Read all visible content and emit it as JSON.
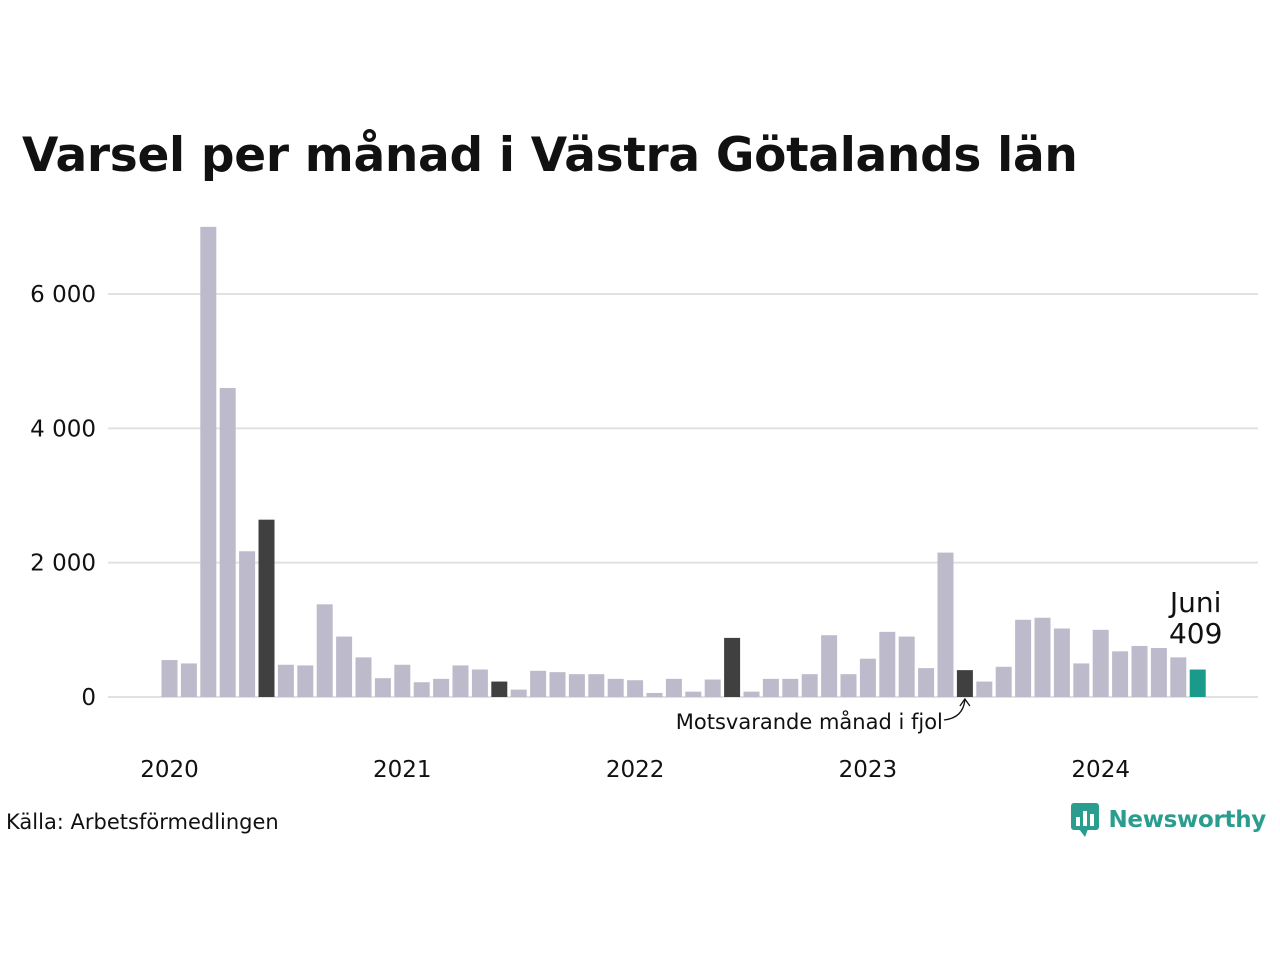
{
  "chart_data": {
    "type": "bar",
    "title": "Varsel per månad i Västra Götalands län",
    "xlabel": "",
    "ylabel": "",
    "ylim": [
      0,
      7000
    ],
    "y_ticks": [
      0,
      2000,
      4000,
      6000
    ],
    "y_tick_labels": [
      "0",
      "2 000",
      "4 000",
      "6 000"
    ],
    "x_tick_labels": [
      "2020",
      "2021",
      "2022",
      "2023",
      "2024"
    ],
    "categories": [
      "2020-01",
      "2020-02",
      "2020-03",
      "2020-04",
      "2020-05",
      "2020-06",
      "2020-07",
      "2020-08",
      "2020-09",
      "2020-10",
      "2020-11",
      "2020-12",
      "2021-01",
      "2021-02",
      "2021-03",
      "2021-04",
      "2021-05",
      "2021-06",
      "2021-07",
      "2021-08",
      "2021-09",
      "2021-10",
      "2021-11",
      "2021-12",
      "2022-01",
      "2022-02",
      "2022-03",
      "2022-04",
      "2022-05",
      "2022-06",
      "2022-07",
      "2022-08",
      "2022-09",
      "2022-10",
      "2022-11",
      "2022-12",
      "2023-01",
      "2023-02",
      "2023-03",
      "2023-04",
      "2023-05",
      "2023-06",
      "2023-07",
      "2023-08",
      "2023-09",
      "2023-10",
      "2023-11",
      "2023-12",
      "2024-01",
      "2024-02",
      "2024-03",
      "2024-04",
      "2024-05",
      "2024-06"
    ],
    "values": [
      550,
      500,
      7000,
      4600,
      2170,
      2640,
      480,
      470,
      1380,
      900,
      590,
      280,
      480,
      220,
      270,
      470,
      410,
      230,
      110,
      390,
      370,
      340,
      340,
      270,
      250,
      60,
      270,
      80,
      260,
      880,
      80,
      270,
      270,
      340,
      920,
      340,
      570,
      970,
      900,
      430,
      2150,
      400,
      230,
      450,
      1150,
      1180,
      1020,
      500,
      1000,
      680,
      760,
      730,
      590,
      409
    ],
    "same_month_indices": [
      5,
      17,
      29,
      41
    ],
    "current_index": 53,
    "grid": "horizontal",
    "colors": {
      "default": "#bdbbcb",
      "same_month": "#404040",
      "current": "#1a9a8a",
      "grid": "#e1e1e1"
    },
    "annotations": {
      "current_month": "Juni",
      "current_value": "409",
      "same_month_label": "Motsvarande månad i fjol"
    }
  },
  "footer": {
    "source": "Källa: Arbetsförmedlingen",
    "brand": "Newsworthy",
    "brand_color": "#2a9d8f"
  }
}
